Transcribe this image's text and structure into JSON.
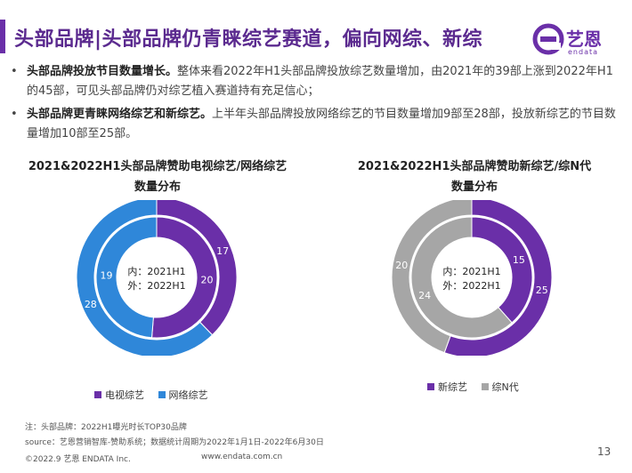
{
  "header": {
    "title": "头部品牌|头部品牌仍青睐综艺赛道，偏向网综、新综",
    "logo_name": "艺恩",
    "logo_sub": "endata"
  },
  "bullets": [
    {
      "marker": "•",
      "bold": "头部品牌投放节目数量增长。",
      "text": "整体来看2022年H1头部品牌投放综艺数量增加，由2021年的39部上涨到2022年H1的45部，可见头部品牌仍对综艺植入赛道持有充足信心；"
    },
    {
      "marker": "•",
      "bold": "头部品牌更青睐网络综艺和新综艺。",
      "text": "上半年头部品牌投放网络综艺的节目数量增加9部至28部，投放新综艺的节目数量增加10部至25部。"
    }
  ],
  "chart_data": [
    {
      "type": "pie",
      "title_line1": "2021&2022H1头部品牌赞助电视综艺/网络综艺",
      "title_line2": "数量分布",
      "center_line1": "内：2021H1",
      "center_line2": "外：2022H1",
      "colors": [
        "#6a2fa8",
        "#2f87d9"
      ],
      "legend": [
        "电视综艺",
        "网络综艺"
      ],
      "legend_marker": "■",
      "inner": {
        "name": "2021H1",
        "values": [
          20,
          19
        ]
      },
      "outer": {
        "name": "2022H1",
        "values": [
          17,
          28
        ]
      }
    },
    {
      "type": "pie",
      "title_line1": "2021&2022H1头部品牌赞助新综艺/综N代",
      "title_line2": "数量分布",
      "center_line1": "内：2021H1",
      "center_line2": "外：2022H1",
      "colors": [
        "#6a2fa8",
        "#a6a6a6"
      ],
      "legend": [
        "新综艺",
        "综N代"
      ],
      "legend_marker": "■",
      "inner": {
        "name": "2021H1",
        "values": [
          15,
          24
        ]
      },
      "outer": {
        "name": "2022H1",
        "values": [
          25,
          20
        ]
      }
    }
  ],
  "notes": {
    "note1": "注：头部品牌：2022H1曝光时长TOP30品牌",
    "note2": "source：艺恩营销智库-赞助系统；数据统计周期为2022年1月1日-2022年6月30日"
  },
  "footer": {
    "copyright": "©2022.9 艺恩 ENDATA Inc.",
    "website": "www.endata.com.cn",
    "page_number": "13"
  }
}
